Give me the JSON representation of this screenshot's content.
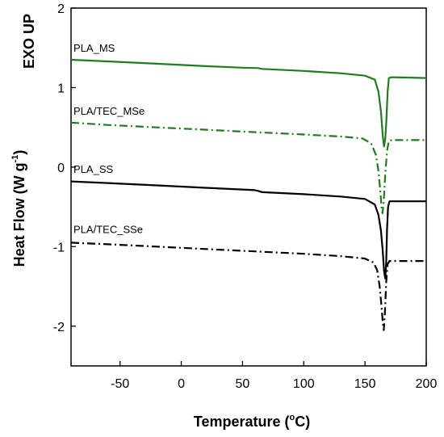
{
  "chart_data": {
    "type": "line",
    "title": "",
    "xlabel": "Temperature (°C)",
    "xlabel_main": "Temperature (",
    "xlabel_unit": "C)",
    "ylabel": "Heat Flow (W g⁻¹)",
    "ylabel_main": "Heat Flow (W g",
    "ylabel_exp": "-1",
    "ylabel_close": ")",
    "corner_label": "EXO UP",
    "xlim": [
      -90,
      200
    ],
    "ylim": [
      -2.5,
      2
    ],
    "xticks": [
      -50,
      0,
      50,
      100,
      150,
      200
    ],
    "yticks": [
      -2,
      -1,
      0,
      1,
      2
    ],
    "grid": false,
    "series": [
      {
        "name": "PLA_MS",
        "color": "#1e7d1e",
        "style": "solid",
        "points": [
          [
            -90,
            1.35
          ],
          [
            -60,
            1.33
          ],
          [
            -20,
            1.3
          ],
          [
            20,
            1.27
          ],
          [
            50,
            1.25
          ],
          [
            63,
            1.245
          ],
          [
            66,
            1.235
          ],
          [
            100,
            1.21
          ],
          [
            130,
            1.18
          ],
          [
            150,
            1.15
          ],
          [
            158,
            1.1
          ],
          [
            161,
            0.95
          ],
          [
            163,
            0.7
          ],
          [
            164.5,
            0.4
          ],
          [
            165.5,
            0.26
          ],
          [
            166.5,
            0.35
          ],
          [
            167.5,
            0.6
          ],
          [
            168.5,
            0.95
          ],
          [
            169.5,
            1.12
          ],
          [
            172,
            1.13
          ],
          [
            200,
            1.12
          ]
        ]
      },
      {
        "name": "PLA/TEC_MSe",
        "color": "#1e7d1e",
        "style": "dashdot",
        "points": [
          [
            -90,
            0.56
          ],
          [
            -60,
            0.53
          ],
          [
            -20,
            0.5
          ],
          [
            20,
            0.47
          ],
          [
            60,
            0.44
          ],
          [
            100,
            0.41
          ],
          [
            130,
            0.385
          ],
          [
            148,
            0.36
          ],
          [
            155,
            0.3
          ],
          [
            159,
            0.15
          ],
          [
            161,
            -0.05
          ],
          [
            162.5,
            -0.3
          ],
          [
            163.5,
            -0.5
          ],
          [
            164.3,
            -0.58
          ],
          [
            165.2,
            -0.45
          ],
          [
            166.5,
            -0.1
          ],
          [
            168,
            0.2
          ],
          [
            169.5,
            0.33
          ],
          [
            172,
            0.34
          ],
          [
            200,
            0.34
          ]
        ]
      },
      {
        "name": "PLA_SS",
        "color": "#000000",
        "style": "solid",
        "points": [
          [
            -90,
            -0.18
          ],
          [
            -60,
            -0.2
          ],
          [
            -20,
            -0.23
          ],
          [
            20,
            -0.26
          ],
          [
            60,
            -0.29
          ],
          [
            63,
            -0.3
          ],
          [
            66,
            -0.315
          ],
          [
            100,
            -0.34
          ],
          [
            130,
            -0.37
          ],
          [
            150,
            -0.4
          ],
          [
            158,
            -0.47
          ],
          [
            161,
            -0.6
          ],
          [
            163,
            -0.8
          ],
          [
            164.5,
            -1.05
          ],
          [
            165.5,
            -1.3
          ],
          [
            166.5,
            -1.4
          ],
          [
            167.3,
            -1.2
          ],
          [
            168,
            -0.8
          ],
          [
            168.8,
            -0.5
          ],
          [
            170,
            -0.43
          ],
          [
            200,
            -0.43
          ]
        ]
      },
      {
        "name": "PLA/TEC_SSe",
        "color": "#000000",
        "style": "dashdot",
        "points": [
          [
            -90,
            -0.95
          ],
          [
            -60,
            -0.97
          ],
          [
            -20,
            -1.0
          ],
          [
            20,
            -1.03
          ],
          [
            60,
            -1.06
          ],
          [
            100,
            -1.09
          ],
          [
            130,
            -1.12
          ],
          [
            150,
            -1.15
          ],
          [
            157,
            -1.2
          ],
          [
            160,
            -1.3
          ],
          [
            162,
            -1.5
          ],
          [
            163.5,
            -1.75
          ],
          [
            164.5,
            -1.95
          ],
          [
            165.3,
            -2.05
          ],
          [
            166.2,
            -1.85
          ],
          [
            167.3,
            -1.45
          ],
          [
            168.5,
            -1.22
          ],
          [
            170,
            -1.18
          ],
          [
            200,
            -1.18
          ]
        ]
      }
    ],
    "series_labels": [
      {
        "name": "PLA_MS",
        "x": -88,
        "y": 1.45
      },
      {
        "name": "PLA/TEC_MSe",
        "x": -88,
        "y": 0.66
      },
      {
        "name": "PLA_SS",
        "x": -88,
        "y": -0.07
      },
      {
        "name": "PLA/TEC_SSe",
        "x": -88,
        "y": -0.83
      }
    ]
  }
}
